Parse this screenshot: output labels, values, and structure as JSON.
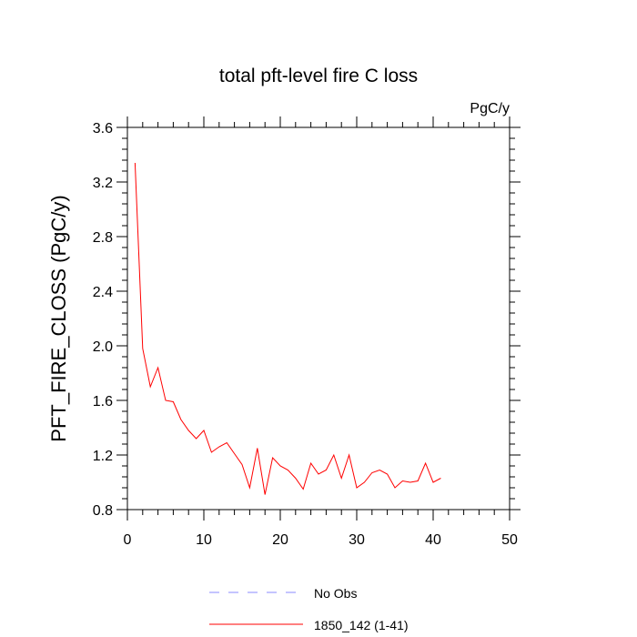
{
  "chart_data": {
    "type": "line",
    "title": "total pft-level fire C loss",
    "units_label": "PgC/y",
    "xlabel": "",
    "ylabel": "PFT_FIRE_CLOSS  (PgC/y)",
    "xlim": [
      0,
      50
    ],
    "ylim": [
      0.8,
      3.6
    ],
    "x_ticks": [
      0,
      10,
      20,
      30,
      40,
      50
    ],
    "y_ticks": [
      0.8,
      1.2,
      1.6,
      2.0,
      2.4,
      2.8,
      3.2,
      3.6
    ],
    "x_tick_labels": [
      "0",
      "10",
      "20",
      "30",
      "40",
      "50"
    ],
    "y_tick_labels": [
      "0.8",
      "1.2",
      "1.6",
      "2.0",
      "2.4",
      "2.8",
      "3.2",
      "3.6"
    ],
    "grid": false,
    "legend_position": "bottom",
    "series": [
      {
        "name": "No Obs",
        "color": "#8888ff",
        "dash": "dashed",
        "x": [],
        "y": []
      },
      {
        "name": "1850_142 (1-41)",
        "color": "#ff0000",
        "dash": "solid",
        "x": [
          1,
          2,
          3,
          4,
          5,
          6,
          7,
          8,
          9,
          10,
          11,
          12,
          13,
          14,
          15,
          16,
          17,
          18,
          19,
          20,
          21,
          22,
          23,
          24,
          25,
          26,
          27,
          28,
          29,
          30,
          31,
          32,
          33,
          34,
          35,
          36,
          37,
          38,
          39,
          40,
          41
        ],
        "y": [
          3.34,
          1.98,
          1.7,
          1.84,
          1.6,
          1.59,
          1.46,
          1.38,
          1.32,
          1.38,
          1.22,
          1.26,
          1.29,
          1.21,
          1.13,
          0.96,
          1.25,
          0.91,
          1.18,
          1.12,
          1.09,
          1.03,
          0.95,
          1.14,
          1.06,
          1.09,
          1.2,
          1.03,
          1.2,
          0.96,
          1.0,
          1.07,
          1.09,
          1.06,
          0.96,
          1.01,
          1.0,
          1.01,
          1.14,
          1.0,
          1.03
        ]
      }
    ]
  }
}
